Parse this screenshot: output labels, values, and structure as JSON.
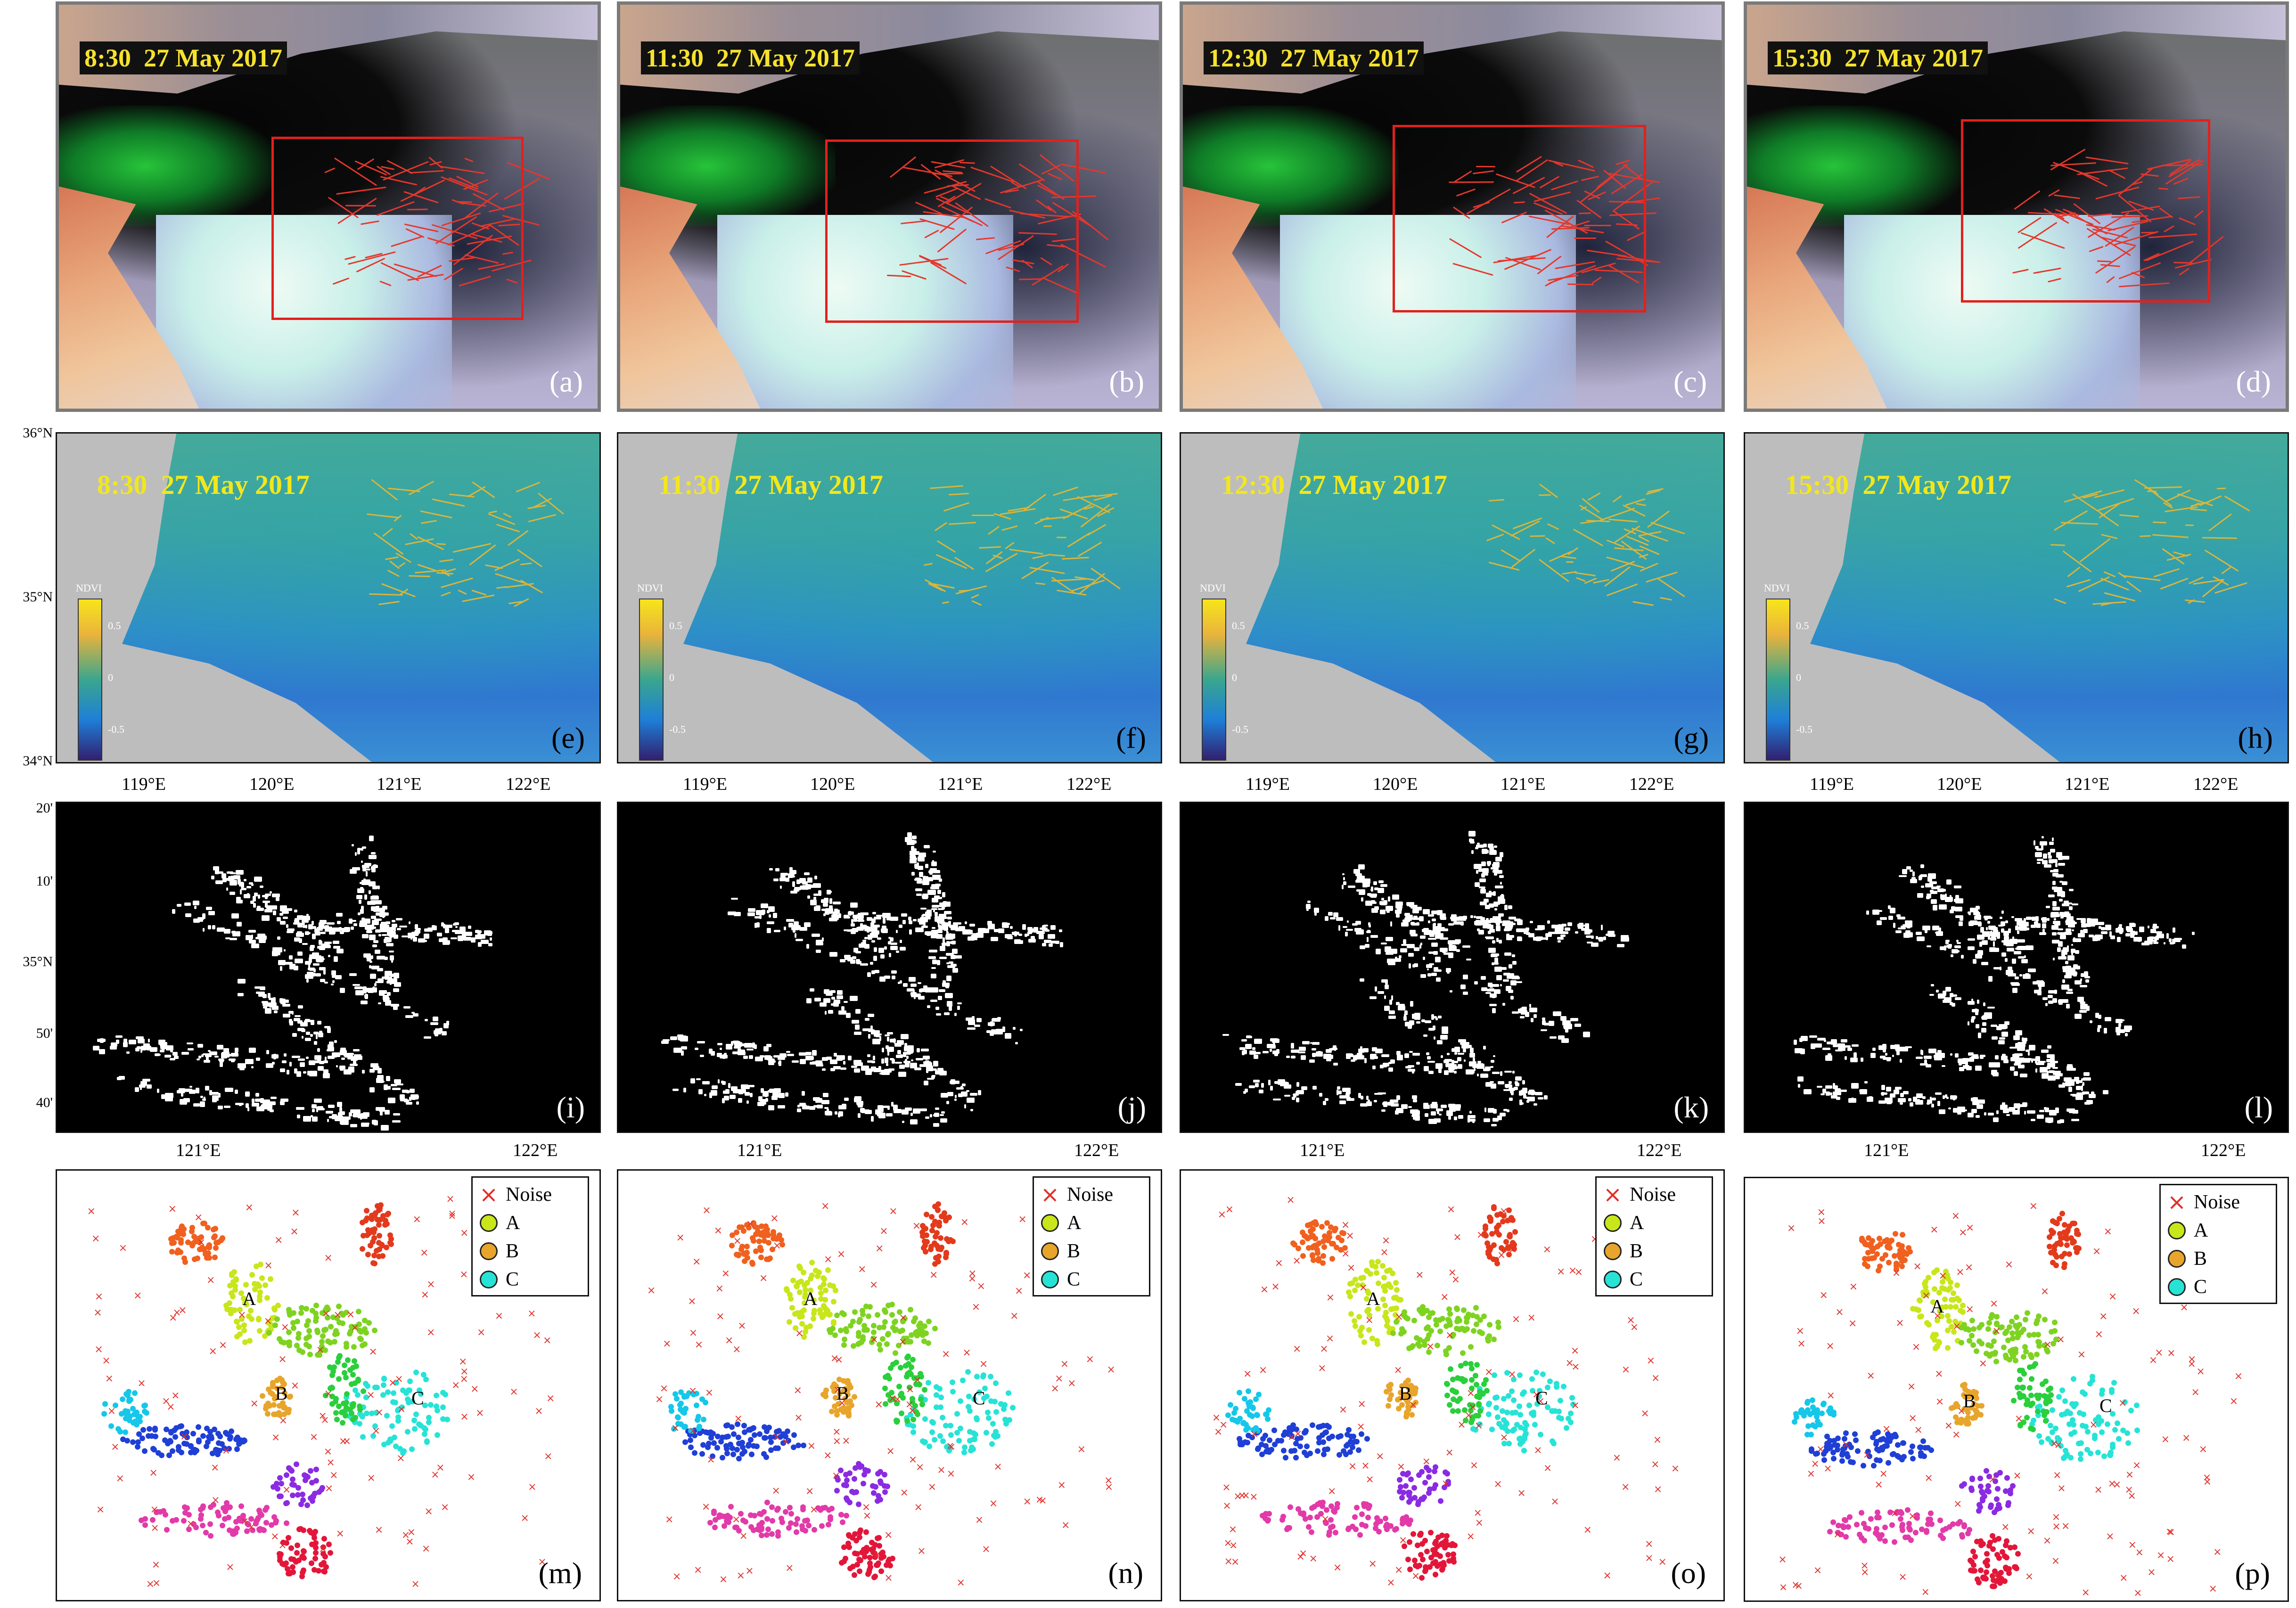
{
  "timestamps": [
    "8:30  27 May 2017",
    "11:30  27 May 2017",
    "12:30  27 May 2017",
    "15:30  27 May 2017"
  ],
  "panel_labels": {
    "rgb": [
      "(a)",
      "(b)",
      "(c)",
      "(d)"
    ],
    "ndvi": [
      "(e)",
      "(f)",
      "(g)",
      "(h)"
    ],
    "mask": [
      "(i)",
      "(j)",
      "(k)",
      "(l)"
    ],
    "cluster": [
      "(m)",
      "(n)",
      "(o)",
      "(p)"
    ]
  },
  "ndvi_colorbar": {
    "title": "NDVI",
    "ticks": [
      "0.5",
      "0",
      "-0.5"
    ],
    "colors": [
      "#f7e51b",
      "#e9b33c",
      "#3aa68e",
      "#1e7fd8",
      "#32206f"
    ]
  },
  "ndvi_axes": {
    "lon_labels": [
      "119°E",
      "120°E",
      "121°E",
      "122°E"
    ],
    "lat_labels": [
      "36°N",
      "35°N",
      "34°N"
    ]
  },
  "mask_axes": {
    "lon_labels": [
      "121°E",
      "122°E"
    ],
    "lat_labels": [
      "20'",
      "10'",
      "35°N",
      "50'",
      "40'"
    ]
  },
  "cluster_legend": [
    {
      "label": "Noise",
      "symbol": "cross",
      "color": "#e0302a"
    },
    {
      "label": "A",
      "symbol": "circle",
      "color": "#c8e61a"
    },
    {
      "label": "B",
      "symbol": "circle",
      "color": "#e8a52c"
    },
    {
      "label": "C",
      "symbol": "circle",
      "color": "#27e3d6"
    }
  ],
  "cluster_labels": [
    "A",
    "B",
    "C"
  ],
  "colors": {
    "roi_box": "#e3201c",
    "stamp_text": "#f6e22c",
    "ndvi_title": "#f2e71c",
    "noise": "#e0302a"
  }
}
